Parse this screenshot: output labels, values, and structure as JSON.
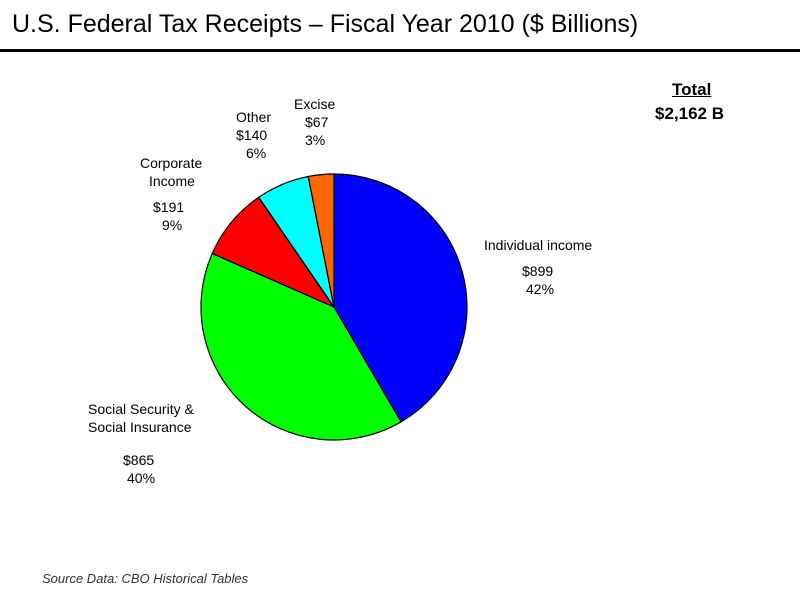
{
  "chart_data": {
    "type": "pie",
    "title": "U.S. Federal Tax Receipts – Fiscal Year 2010 ($ Billions)",
    "unit": "$ Billions",
    "total_label": "Total",
    "total_value": "$2,162 B",
    "slices": [
      {
        "name": "Individual income",
        "name_lines": [
          "Individual income"
        ],
        "value": 899,
        "value_label": "$899",
        "percent_label": "42%",
        "color": "#0000ff"
      },
      {
        "name": "Social Security & Social Insurance",
        "name_lines": [
          "Social Security &",
          "Social Insurance"
        ],
        "value": 865,
        "value_label": "$865",
        "percent_label": "40%",
        "color": "#00ff00"
      },
      {
        "name": "Corporate Income",
        "name_lines": [
          "Corporate",
          "Income"
        ],
        "value": 191,
        "value_label": "$191",
        "percent_label": "9%",
        "color": "#ff0000"
      },
      {
        "name": "Other",
        "name_lines": [
          "Other"
        ],
        "value": 140,
        "value_label": "$140",
        "percent_label": "6%",
        "color": "#00ffff"
      },
      {
        "name": "Excise",
        "name_lines": [
          "Excise"
        ],
        "value": 67,
        "value_label": "$67",
        "percent_label": "3%",
        "color": "#ff6600"
      }
    ],
    "source": "Source Data: CBO Historical Tables"
  }
}
